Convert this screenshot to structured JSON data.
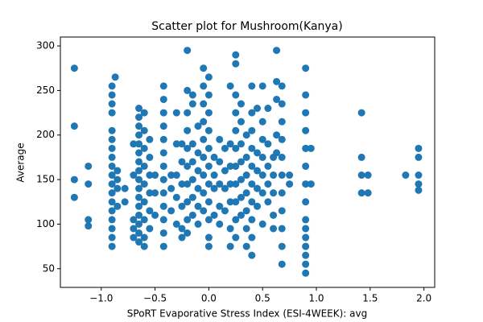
{
  "chart_data": {
    "type": "scatter",
    "title": "Scatter plot for Mushroom(Kanya)",
    "x_label": "SPoRT Evaporative Stress Index (ESI-4WEEK): avg",
    "y_label": "Average",
    "color": "#1f77b4",
    "xlim": [
      -1.38,
      2.1
    ],
    "ylim": [
      29,
      310
    ],
    "xticks": [
      {
        "value": -1,
        "label": "−1.0"
      },
      {
        "value": -0.5,
        "label": "−0.5"
      },
      {
        "value": 0,
        "label": "0.0"
      },
      {
        "value": 0.5,
        "label": "0.5"
      },
      {
        "value": 1,
        "label": "1.0"
      },
      {
        "value": 1.5,
        "label": "1.5"
      },
      {
        "value": 2,
        "label": "2.0"
      }
    ],
    "yticks": [
      50,
      100,
      150,
      200,
      250,
      300
    ],
    "x": [
      -1.25,
      -1.25,
      -1.25,
      -1.25,
      -1.12,
      -1.12,
      -1.12,
      -1.12,
      -0.9,
      -0.9,
      -0.9,
      -0.9,
      -0.9,
      -0.9,
      -0.9,
      -0.9,
      -0.9,
      -0.9,
      -0.9,
      -0.9,
      -0.9,
      -0.9,
      -0.9,
      -0.9,
      -0.9,
      -0.9,
      -0.87,
      -0.85,
      -0.85,
      -0.85,
      -0.85,
      -0.78,
      -0.78,
      -0.7,
      -0.7,
      -0.7,
      -0.7,
      -0.7,
      -0.65,
      -0.65,
      -0.65,
      -0.65,
      -0.65,
      -0.65,
      -0.65,
      -0.65,
      -0.65,
      -0.65,
      -0.65,
      -0.65,
      -0.65,
      -0.65,
      -0.65,
      -0.65,
      -0.6,
      -0.6,
      -0.6,
      -0.6,
      -0.6,
      -0.6,
      -0.6,
      -0.6,
      -0.6,
      -0.55,
      -0.55,
      -0.55,
      -0.55,
      -0.55,
      -0.55,
      -0.5,
      -0.5,
      -0.5,
      -0.42,
      -0.42,
      -0.42,
      -0.42,
      -0.42,
      -0.42,
      -0.42,
      -0.42,
      -0.42,
      -0.42,
      -0.42,
      -0.42,
      -0.42,
      -0.35,
      -0.35,
      -0.35,
      -0.3,
      -0.3,
      -0.3,
      -0.3,
      -0.3,
      -0.25,
      -0.25,
      -0.25,
      -0.25,
      -0.25,
      -0.25,
      -0.2,
      -0.2,
      -0.2,
      -0.2,
      -0.2,
      -0.2,
      -0.2,
      -0.2,
      -0.2,
      -0.2,
      -0.15,
      -0.15,
      -0.15,
      -0.15,
      -0.15,
      -0.15,
      -0.15,
      -0.1,
      -0.1,
      -0.1,
      -0.1,
      -0.1,
      -0.1,
      -0.05,
      -0.05,
      -0.05,
      -0.05,
      -0.05,
      -0.05,
      -0.05,
      -0.05,
      -0.05,
      0,
      0,
      0,
      0,
      0,
      0,
      0,
      0,
      0,
      0,
      0,
      0.05,
      0.05,
      0.05,
      0.05,
      0.1,
      0.1,
      0.1,
      0.1,
      0.1,
      0.15,
      0.15,
      0.15,
      0.15,
      0.2,
      0.2,
      0.2,
      0.2,
      0.2,
      0.2,
      0.2,
      0.25,
      0.25,
      0.25,
      0.25,
      0.25,
      0.25,
      0.25,
      0.25,
      0.25,
      0.25,
      0.25,
      0.3,
      0.3,
      0.3,
      0.3,
      0.3,
      0.3,
      0.3,
      0.35,
      0.35,
      0.35,
      0.35,
      0.35,
      0.35,
      0.35,
      0.4,
      0.4,
      0.4,
      0.4,
      0.4,
      0.4,
      0.4,
      0.4,
      0.4,
      0.4,
      0.45,
      0.45,
      0.45,
      0.45,
      0.45,
      0.5,
      0.5,
      0.5,
      0.5,
      0.5,
      0.5,
      0.5,
      0.55,
      0.55,
      0.55,
      0.55,
      0.55,
      0.6,
      0.6,
      0.6,
      0.6,
      0.6,
      0.63,
      0.63,
      0.63,
      0.63,
      0.63,
      0.68,
      0.68,
      0.68,
      0.68,
      0.68,
      0.68,
      0.68,
      0.68,
      0.68,
      0.68,
      0.68,
      0.75,
      0.75,
      0.9,
      0.9,
      0.9,
      0.9,
      0.9,
      0.9,
      0.9,
      0.9,
      0.9,
      0.9,
      0.9,
      0.9,
      0.9,
      0.9,
      0.9,
      0.95,
      0.95,
      1.42,
      1.42,
      1.42,
      1.42,
      1.48,
      1.48,
      1.83,
      1.95,
      1.95,
      1.95,
      1.95,
      1.95
    ],
    "values": [
      275,
      210,
      150,
      130,
      165,
      145,
      105,
      98,
      255,
      245,
      235,
      225,
      205,
      195,
      185,
      175,
      165,
      155,
      145,
      135,
      125,
      115,
      105,
      95,
      85,
      75,
      265,
      160,
      150,
      140,
      120,
      140,
      125,
      190,
      155,
      105,
      95,
      85,
      230,
      220,
      210,
      200,
      190,
      180,
      170,
      160,
      150,
      140,
      130,
      120,
      110,
      100,
      90,
      80,
      225,
      205,
      185,
      165,
      145,
      125,
      105,
      85,
      75,
      195,
      175,
      155,
      135,
      115,
      95,
      155,
      135,
      110,
      255,
      240,
      225,
      210,
      195,
      180,
      165,
      150,
      135,
      120,
      105,
      90,
      75,
      155,
      140,
      115,
      225,
      190,
      155,
      130,
      100,
      190,
      170,
      145,
      120,
      95,
      85,
      295,
      250,
      225,
      205,
      185,
      165,
      145,
      125,
      105,
      90,
      245,
      235,
      190,
      170,
      150,
      130,
      110,
      210,
      180,
      160,
      140,
      120,
      100,
      275,
      255,
      235,
      215,
      195,
      175,
      155,
      135,
      115,
      265,
      245,
      225,
      205,
      185,
      165,
      145,
      125,
      105,
      85,
      75,
      175,
      155,
      140,
      110,
      195,
      170,
      145,
      120,
      100,
      185,
      160,
      140,
      115,
      255,
      190,
      165,
      145,
      125,
      95,
      75,
      290,
      280,
      245,
      225,
      205,
      185,
      165,
      145,
      125,
      105,
      85,
      235,
      215,
      190,
      170,
      150,
      130,
      110,
      200,
      175,
      155,
      135,
      115,
      95,
      75,
      255,
      225,
      205,
      185,
      165,
      145,
      125,
      105,
      85,
      65,
      230,
      180,
      160,
      140,
      120,
      255,
      215,
      195,
      175,
      155,
      135,
      100,
      230,
      190,
      165,
      145,
      125,
      175,
      155,
      135,
      110,
      95,
      295,
      260,
      240,
      200,
      180,
      255,
      235,
      215,
      195,
      175,
      155,
      135,
      115,
      95,
      75,
      55,
      155,
      145,
      275,
      245,
      225,
      205,
      185,
      165,
      145,
      125,
      105,
      95,
      85,
      75,
      65,
      55,
      45,
      185,
      145,
      225,
      175,
      155,
      135,
      155,
      135,
      155,
      185,
      175,
      155,
      145,
      138
    ]
  }
}
